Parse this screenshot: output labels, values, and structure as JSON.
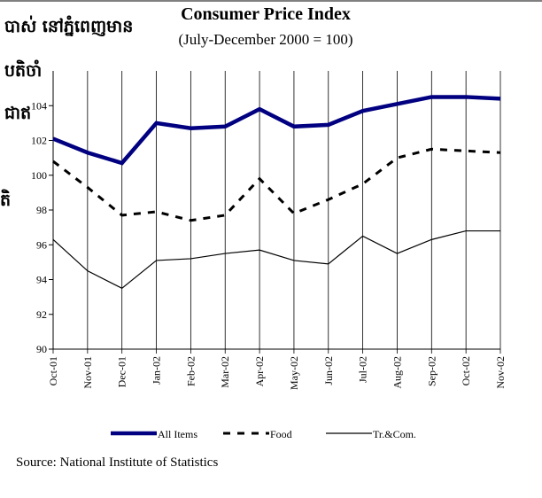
{
  "chart_data": {
    "type": "line",
    "title": "Consumer Price Index",
    "subtitle": "(July-December 2000 = 100)",
    "annotations": [
      "បាស់ នៅភ្នំពេញមាន",
      "បតិចាំ",
      "ជាឥ",
      "តិ"
    ],
    "source": "Source: National Institute of Statistics",
    "categories": [
      "Oct-01",
      "Nov-01",
      "Dec-01",
      "Jan-02",
      "Feb-02",
      "Mar-02",
      "Apr-02",
      "May-02",
      "Jun-02",
      "Jul-02",
      "Aug-02",
      "Sep-02",
      "Oct-02",
      "Nov-02"
    ],
    "series": [
      {
        "name": "All Items",
        "color": "#000080",
        "values": [
          102.1,
          101.3,
          100.7,
          103.0,
          102.7,
          102.8,
          103.8,
          102.8,
          102.9,
          103.7,
          104.1,
          104.5,
          104.5,
          104.4
        ]
      },
      {
        "name": "Food",
        "color": "#000000",
        "values": [
          100.8,
          99.3,
          97.7,
          97.9,
          97.4,
          97.7,
          99.8,
          97.8,
          98.6,
          99.5,
          101.0,
          101.5,
          101.4,
          101.3
        ]
      },
      {
        "name": "Tr.&Com.",
        "color": "#000000",
        "values": [
          96.3,
          94.5,
          93.5,
          95.1,
          95.2,
          95.5,
          95.7,
          95.1,
          94.9,
          96.5,
          95.5,
          96.3,
          96.8,
          96.8
        ]
      }
    ],
    "ylim": [
      90,
      106
    ],
    "yticks": [
      90,
      92,
      94,
      96,
      98,
      100,
      102,
      104
    ]
  }
}
